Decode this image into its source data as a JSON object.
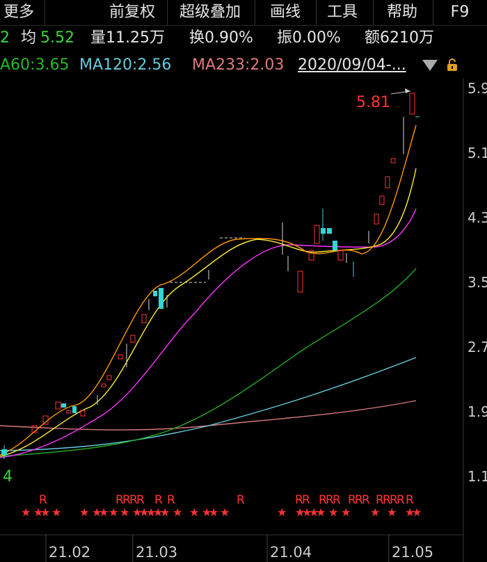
{
  "menu": {
    "more": "更多",
    "adjust": "前复权",
    "overlay": "超级叠加",
    "draw": "画线",
    "tools": "工具",
    "help": "帮助",
    "f9": "F9"
  },
  "info": {
    "prefix": "2",
    "avg_label": "均",
    "avg_value": "5.52",
    "vol": "量11.25万",
    "turnover": "换0.90%",
    "amplitude": "振0.00%",
    "amount": "额6210万"
  },
  "ma": {
    "ma60": "A60:3.65",
    "ma120": "MA120:2.56",
    "ma233": "MA233:2.03",
    "date_range": "2020/09/04-..."
  },
  "chart": {
    "y_ticks": [
      "5.9",
      "5.1",
      "4.3",
      "3.5",
      "2.7",
      "1.9",
      "1.1"
    ],
    "x_ticks": [
      "21.02",
      "21.03",
      "21.04",
      "21.05"
    ],
    "high_label": "5.81",
    "low_label": "4",
    "colors": {
      "up": "#ff3333",
      "down": "#33d6d6",
      "ma5": "#ffffff",
      "ma10": "#ff9900",
      "ma20": "#ffee33",
      "ma30": "#ff33ff",
      "ma60": "#22aa22",
      "ma120": "#66ccdd",
      "ma233": "#d77a7a"
    },
    "r_marker": "R",
    "star_marker": "★"
  }
}
